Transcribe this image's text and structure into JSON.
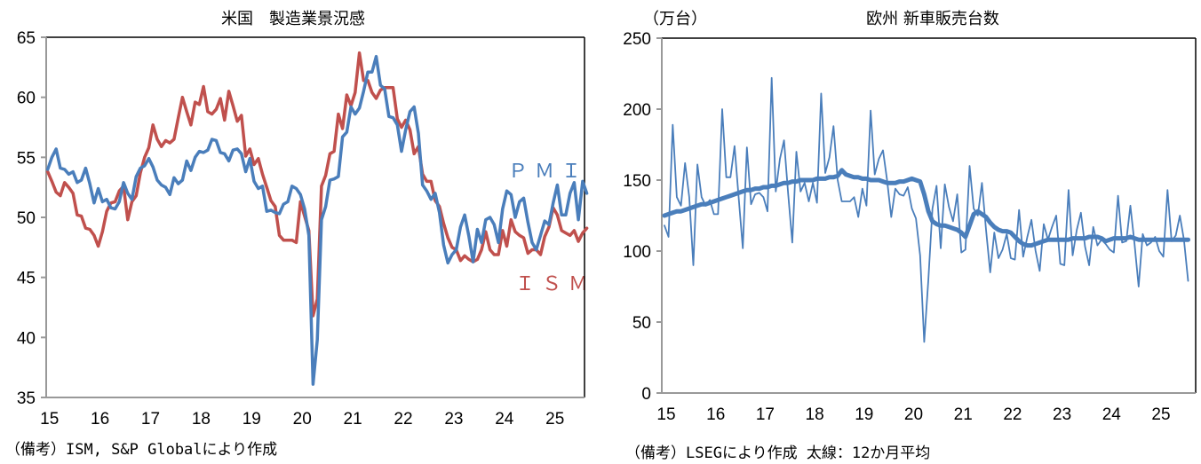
{
  "colors": {
    "pmi": "#4a7ebb",
    "ism": "#c0504d",
    "axis": "#999999"
  },
  "chart_data": [
    {
      "type": "line",
      "title": "米国　製造業景況感",
      "ylim": [
        35,
        65
      ],
      "yticks": [
        35,
        40,
        45,
        50,
        55,
        60,
        65
      ],
      "x_start": "2015-01",
      "x_frequency": "monthly",
      "xtick_labels": [
        "15",
        "16",
        "17",
        "18",
        "19",
        "20",
        "21",
        "22",
        "23",
        "24",
        "25"
      ],
      "grid": false,
      "note": "（備考）ISM, S&P Globalにより作成",
      "series": [
        {
          "name": "PMI",
          "label": "ＰＭＩ",
          "color": "#4a7ebb",
          "values": [
            54,
            55,
            55.7,
            54.1,
            54,
            53.6,
            53.8,
            52.9,
            53.1,
            54.1,
            52.8,
            51.2,
            52.4,
            51.3,
            51.5,
            50.8,
            50.7,
            51.3,
            52.9,
            52,
            51.5,
            53.4,
            54.1,
            54.3,
            54.9,
            54.2,
            53.1,
            52.7,
            52.5,
            51.9,
            53.3,
            52.8,
            53.1,
            54.7,
            53.9,
            55,
            55.5,
            55.4,
            55.6,
            56.5,
            56.4,
            55.4,
            55.3,
            54.7,
            55.6,
            55.7,
            55.3,
            53.8,
            54.9,
            53,
            52.4,
            52.6,
            50.5,
            50.6,
            50.4,
            50.3,
            51.1,
            51.3,
            52.6,
            52.4,
            51.9,
            50.7,
            48.5,
            36.1,
            39.8,
            49.8,
            50.9,
            53.1,
            53.2,
            53.4,
            56.7,
            57.1,
            59.2,
            58.6,
            59.1,
            60.5,
            62.1,
            62.1,
            63.4,
            61,
            60.7,
            58.4,
            58.3,
            57.7,
            55.5,
            57.3,
            58.8,
            59.2,
            57,
            52.7,
            52.2,
            51.5,
            52,
            50.4,
            47.7,
            46.2,
            46.9,
            47.3,
            49.2,
            50.2,
            48.4,
            46.3,
            49,
            47.9,
            49.8,
            50,
            49.4,
            47.9,
            50.7,
            52.2,
            51.9,
            50,
            51.3,
            51.6,
            49.6,
            47.9,
            47.3,
            48.5,
            49.7,
            49.4,
            51.2,
            52.7,
            50.2,
            50.2,
            52,
            52.9,
            49.8,
            53,
            52
          ]
        },
        {
          "name": "ISM",
          "label": "ＩＳＭ",
          "color": "#c0504d",
          "values": [
            53.8,
            53,
            52.1,
            51.8,
            52.9,
            52.5,
            52,
            50.2,
            50.1,
            49.1,
            49,
            48.5,
            47.6,
            48.8,
            50.5,
            51.2,
            51.3,
            52.2,
            52.6,
            49.8,
            51.3,
            51.8,
            53.7,
            55,
            55.8,
            57.7,
            56.5,
            55.9,
            56.4,
            56.2,
            56.5,
            58.3,
            60,
            58.8,
            57.7,
            59.6,
            59.4,
            60.9,
            58.8,
            58.6,
            59,
            59.9,
            58.1,
            60.5,
            59.3,
            58,
            58.5,
            55.1,
            55.7,
            54.4,
            54.9,
            53.6,
            52.5,
            51.4,
            50.9,
            48.5,
            48.1,
            48.1,
            48.1,
            47.9,
            51.3,
            50.1,
            48.9,
            41.8,
            43.2,
            52.6,
            53.5,
            55.3,
            55.5,
            58.6,
            57.4,
            60.2,
            59.3,
            60.4,
            63.7,
            61.4,
            61.4,
            60.4,
            59.9,
            60.6,
            60.8,
            60.8,
            60.8,
            58.2,
            57.5,
            58.1,
            57.3,
            55.3,
            55.9,
            53.6,
            53,
            53,
            51.4,
            50.9,
            49.5,
            48.3,
            47.5,
            47.3,
            46.4,
            46.8,
            46.5,
            46.3,
            46.5,
            47.3,
            48.8,
            47.3,
            46.9,
            46.9,
            48.9,
            47.6,
            49.8,
            48.8,
            48.5,
            48.3,
            47,
            47.3,
            47.3,
            46.9,
            48.4,
            49.2,
            50.8,
            50.2,
            48.9,
            48.7,
            48.5,
            48.9,
            48,
            48.7,
            49.1
          ]
        }
      ]
    },
    {
      "type": "line",
      "title": "欧州 新車販売台数",
      "unit": "（万台）",
      "ylim": [
        0,
        250
      ],
      "yticks": [
        0,
        50,
        100,
        150,
        200,
        250
      ],
      "x_start": "2015-01",
      "x_frequency": "monthly",
      "xtick_labels": [
        "15",
        "16",
        "17",
        "18",
        "19",
        "20",
        "21",
        "22",
        "23",
        "24",
        "25"
      ],
      "grid": false,
      "note": "（備考）LSEGにより作成 太線：12か月平均",
      "series": [
        {
          "type": "monthly",
          "color": "#4a7ebb",
          "values": [
            118,
            110,
            189,
            138,
            132,
            162,
            138,
            90,
            161,
            138,
            132,
            136,
            126,
            126,
            200,
            152,
            152,
            174,
            138,
            102,
            173,
            133,
            140,
            141,
            138,
            128,
            222,
            142,
            165,
            178,
            140,
            106,
            170,
            142,
            148,
            135,
            148,
            134,
            211,
            155,
            166,
            188,
            150,
            135,
            135,
            135,
            138,
            124,
            144,
            132,
            199,
            154,
            165,
            171,
            150,
            124,
            144,
            140,
            139,
            145,
            130,
            123,
            97,
            36,
            80,
            130,
            146,
            102,
            147,
            131,
            121,
            140,
            99,
            101,
            160,
            130,
            125,
            148,
            115,
            85,
            113,
            95,
            101,
            112,
            95,
            94,
            129,
            96,
            110,
            122,
            100,
            86,
            119,
            108,
            117,
            125,
            91,
            90,
            143,
            97,
            115,
            127,
            103,
            90,
            117,
            104,
            108,
            105,
            101,
            99,
            139,
            106,
            107,
            132,
            105,
            75,
            112,
            104,
            106,
            110,
            100,
            96,
            143,
            107,
            111,
            125,
            108,
            79
          ]
        },
        {
          "type": "12-month average",
          "color": "#4a7ebb",
          "values": [
            125,
            126,
            127,
            128,
            128,
            129,
            130,
            131,
            132,
            133,
            133,
            134,
            135,
            136,
            137,
            138,
            139,
            140,
            141,
            142,
            143,
            143,
            144,
            144,
            145,
            145,
            146,
            146,
            147,
            148,
            148,
            149,
            149,
            150,
            150,
            150,
            150,
            151,
            151,
            151,
            152,
            152,
            153,
            157,
            154,
            153,
            152,
            152,
            151,
            151,
            150,
            150,
            150,
            149,
            148,
            148,
            148,
            149,
            149,
            150,
            151,
            150,
            149,
            140,
            128,
            121,
            119,
            118,
            118,
            117,
            116,
            115,
            113,
            110,
            118,
            126,
            128,
            126,
            124,
            120,
            117,
            115,
            114,
            114,
            113,
            110,
            107,
            105,
            104,
            104,
            105,
            106,
            107,
            108,
            108,
            108,
            108,
            108,
            108,
            109,
            109,
            109,
            109,
            110,
            110,
            110,
            109,
            107,
            108,
            109,
            109,
            109,
            109,
            110,
            109,
            108,
            108,
            108,
            108,
            108,
            108,
            108,
            108,
            108,
            108,
            108,
            108,
            108
          ]
        }
      ]
    }
  ]
}
